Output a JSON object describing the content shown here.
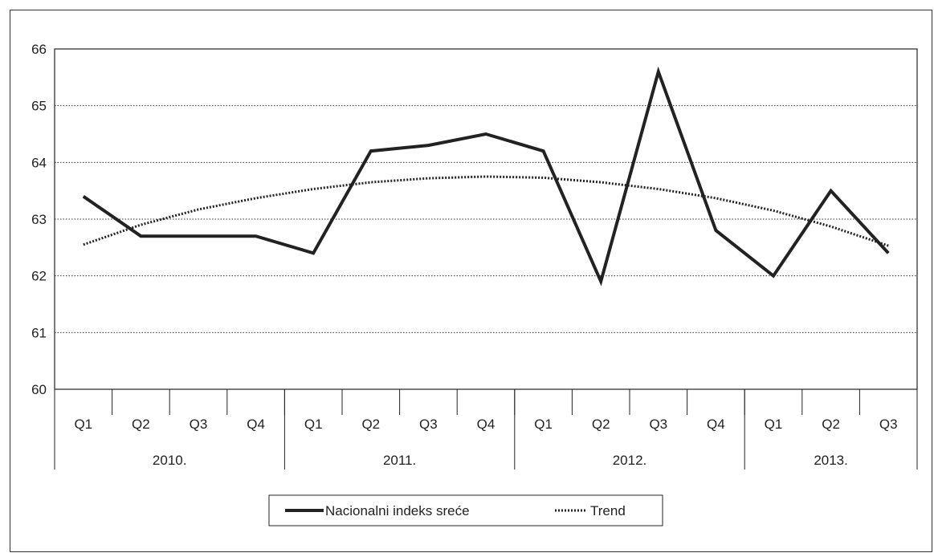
{
  "chart_data": {
    "type": "line",
    "title": "",
    "xlabel": "",
    "ylabel": "",
    "ylim": [
      60,
      66
    ],
    "yticks": [
      60,
      61,
      62,
      63,
      64,
      65,
      66
    ],
    "grid": true,
    "legend_position": "bottom",
    "categories": [
      "Q1",
      "Q2",
      "Q3",
      "Q4",
      "Q1",
      "Q2",
      "Q3",
      "Q4",
      "Q1",
      "Q2",
      "Q3",
      "Q4",
      "Q1",
      "Q2",
      "Q3"
    ],
    "year_groups": [
      {
        "label": "2010.",
        "count": 4
      },
      {
        "label": "2011.",
        "count": 4
      },
      {
        "label": "2012.",
        "count": 4
      },
      {
        "label": "2013.",
        "count": 3
      }
    ],
    "series": [
      {
        "name": "Nacionalni indeks sreće",
        "style": "solid",
        "color": "#222222",
        "values": [
          63.4,
          62.7,
          62.7,
          62.7,
          62.4,
          64.2,
          64.3,
          64.5,
          64.2,
          61.9,
          65.6,
          62.8,
          62.0,
          63.5,
          62.4
        ]
      },
      {
        "name": "Trend",
        "style": "dotted",
        "color": "#222222",
        "values": [
          62.55,
          62.9,
          63.17,
          63.37,
          63.53,
          63.65,
          63.72,
          63.75,
          63.73,
          63.65,
          63.53,
          63.37,
          63.15,
          62.87,
          62.53
        ]
      }
    ]
  }
}
